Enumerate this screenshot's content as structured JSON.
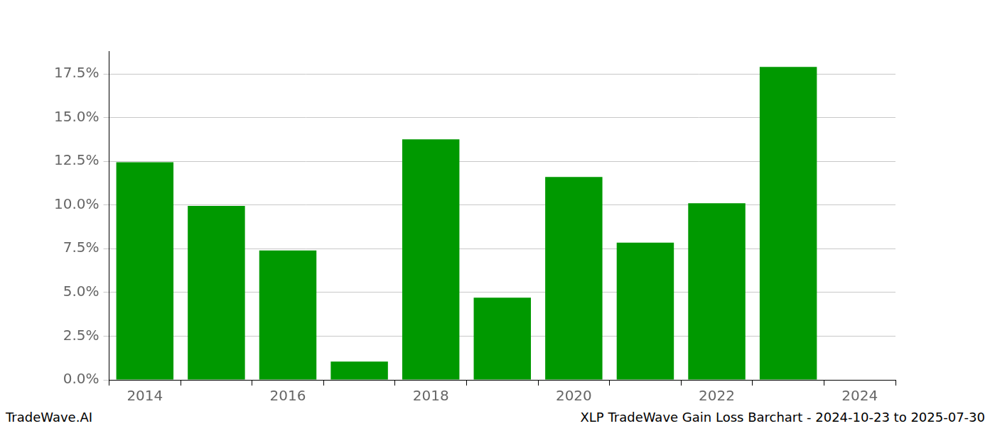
{
  "chart_data": {
    "type": "bar",
    "categories": [
      "2014",
      null,
      "2016",
      null,
      "2018",
      null,
      "2020",
      null,
      "2022",
      null,
      "2024"
    ],
    "values": [
      12.45,
      9.95,
      7.4,
      1.05,
      13.75,
      4.7,
      11.6,
      7.85,
      10.1,
      17.9,
      null
    ],
    "color": "#009900",
    "ylim": [
      0,
      18.8
    ],
    "yticks": [
      {
        "value": 0,
        "label": "0.0%"
      },
      {
        "value": 2.5,
        "label": "2.5%"
      },
      {
        "value": 5,
        "label": "5.0%"
      },
      {
        "value": 7.5,
        "label": "7.5%"
      },
      {
        "value": 10,
        "label": "10.0%"
      },
      {
        "value": 12.5,
        "label": "12.5%"
      },
      {
        "value": 15,
        "label": "15.0%"
      },
      {
        "value": 17.5,
        "label": "17.5%"
      }
    ],
    "grid": true,
    "annotations": [
      "TradeWave.AI",
      "XLP TradeWave Gain Loss Barchart - 2024-10-23 to 2025-07-30"
    ]
  }
}
